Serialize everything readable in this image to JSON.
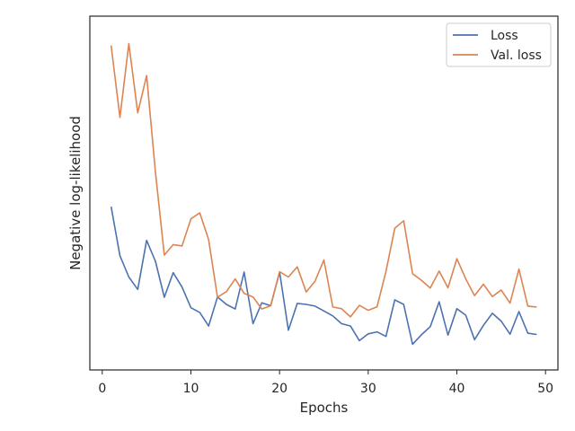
{
  "chart_data": {
    "type": "line",
    "title": "",
    "xlabel": "Epochs",
    "ylabel": "Negative log-likelihood",
    "xlim": [
      -1.4,
      51.4
    ],
    "ylim": [
      0,
      1
    ],
    "x_ticks": [
      0,
      10,
      20,
      30,
      40,
      50
    ],
    "y_ticks_shown": false,
    "grid": false,
    "legend_position": "top-right",
    "x": [
      1,
      2,
      3,
      4,
      5,
      6,
      7,
      8,
      9,
      10,
      11,
      12,
      13,
      14,
      15,
      16,
      17,
      18,
      19,
      20,
      21,
      22,
      23,
      24,
      25,
      26,
      27,
      28,
      29,
      30,
      31,
      32,
      33,
      34,
      35,
      36,
      37,
      38,
      39,
      40,
      41,
      42,
      43,
      44,
      45,
      46,
      47,
      48,
      49
    ],
    "series": [
      {
        "name": "Loss",
        "color": "#4c72b0",
        "values": [
          0.461,
          0.311,
          0.246,
          0.208,
          0.358,
          0.294,
          0.184,
          0.259,
          0.215,
          0.152,
          0.137,
          0.096,
          0.185,
          0.162,
          0.148,
          0.261,
          0.103,
          0.167,
          0.158,
          0.261,
          0.083,
          0.165,
          0.162,
          0.157,
          0.142,
          0.127,
          0.103,
          0.096,
          0.051,
          0.072,
          0.078,
          0.064,
          0.176,
          0.162,
          0.04,
          0.069,
          0.094,
          0.17,
          0.068,
          0.149,
          0.129,
          0.054,
          0.098,
          0.135,
          0.111,
          0.071,
          0.14,
          0.074,
          0.07
        ]
      },
      {
        "name": "Val. loss",
        "color": "#dd8452",
        "values": [
          0.954,
          0.734,
          0.96,
          0.748,
          0.862,
          0.567,
          0.313,
          0.345,
          0.341,
          0.424,
          0.442,
          0.36,
          0.184,
          0.201,
          0.24,
          0.196,
          0.185,
          0.148,
          0.158,
          0.262,
          0.246,
          0.277,
          0.2,
          0.233,
          0.298,
          0.154,
          0.149,
          0.124,
          0.159,
          0.144,
          0.155,
          0.263,
          0.395,
          0.418,
          0.256,
          0.236,
          0.212,
          0.264,
          0.213,
          0.302,
          0.24,
          0.189,
          0.224,
          0.186,
          0.206,
          0.166,
          0.27,
          0.157,
          0.154
        ]
      }
    ]
  }
}
